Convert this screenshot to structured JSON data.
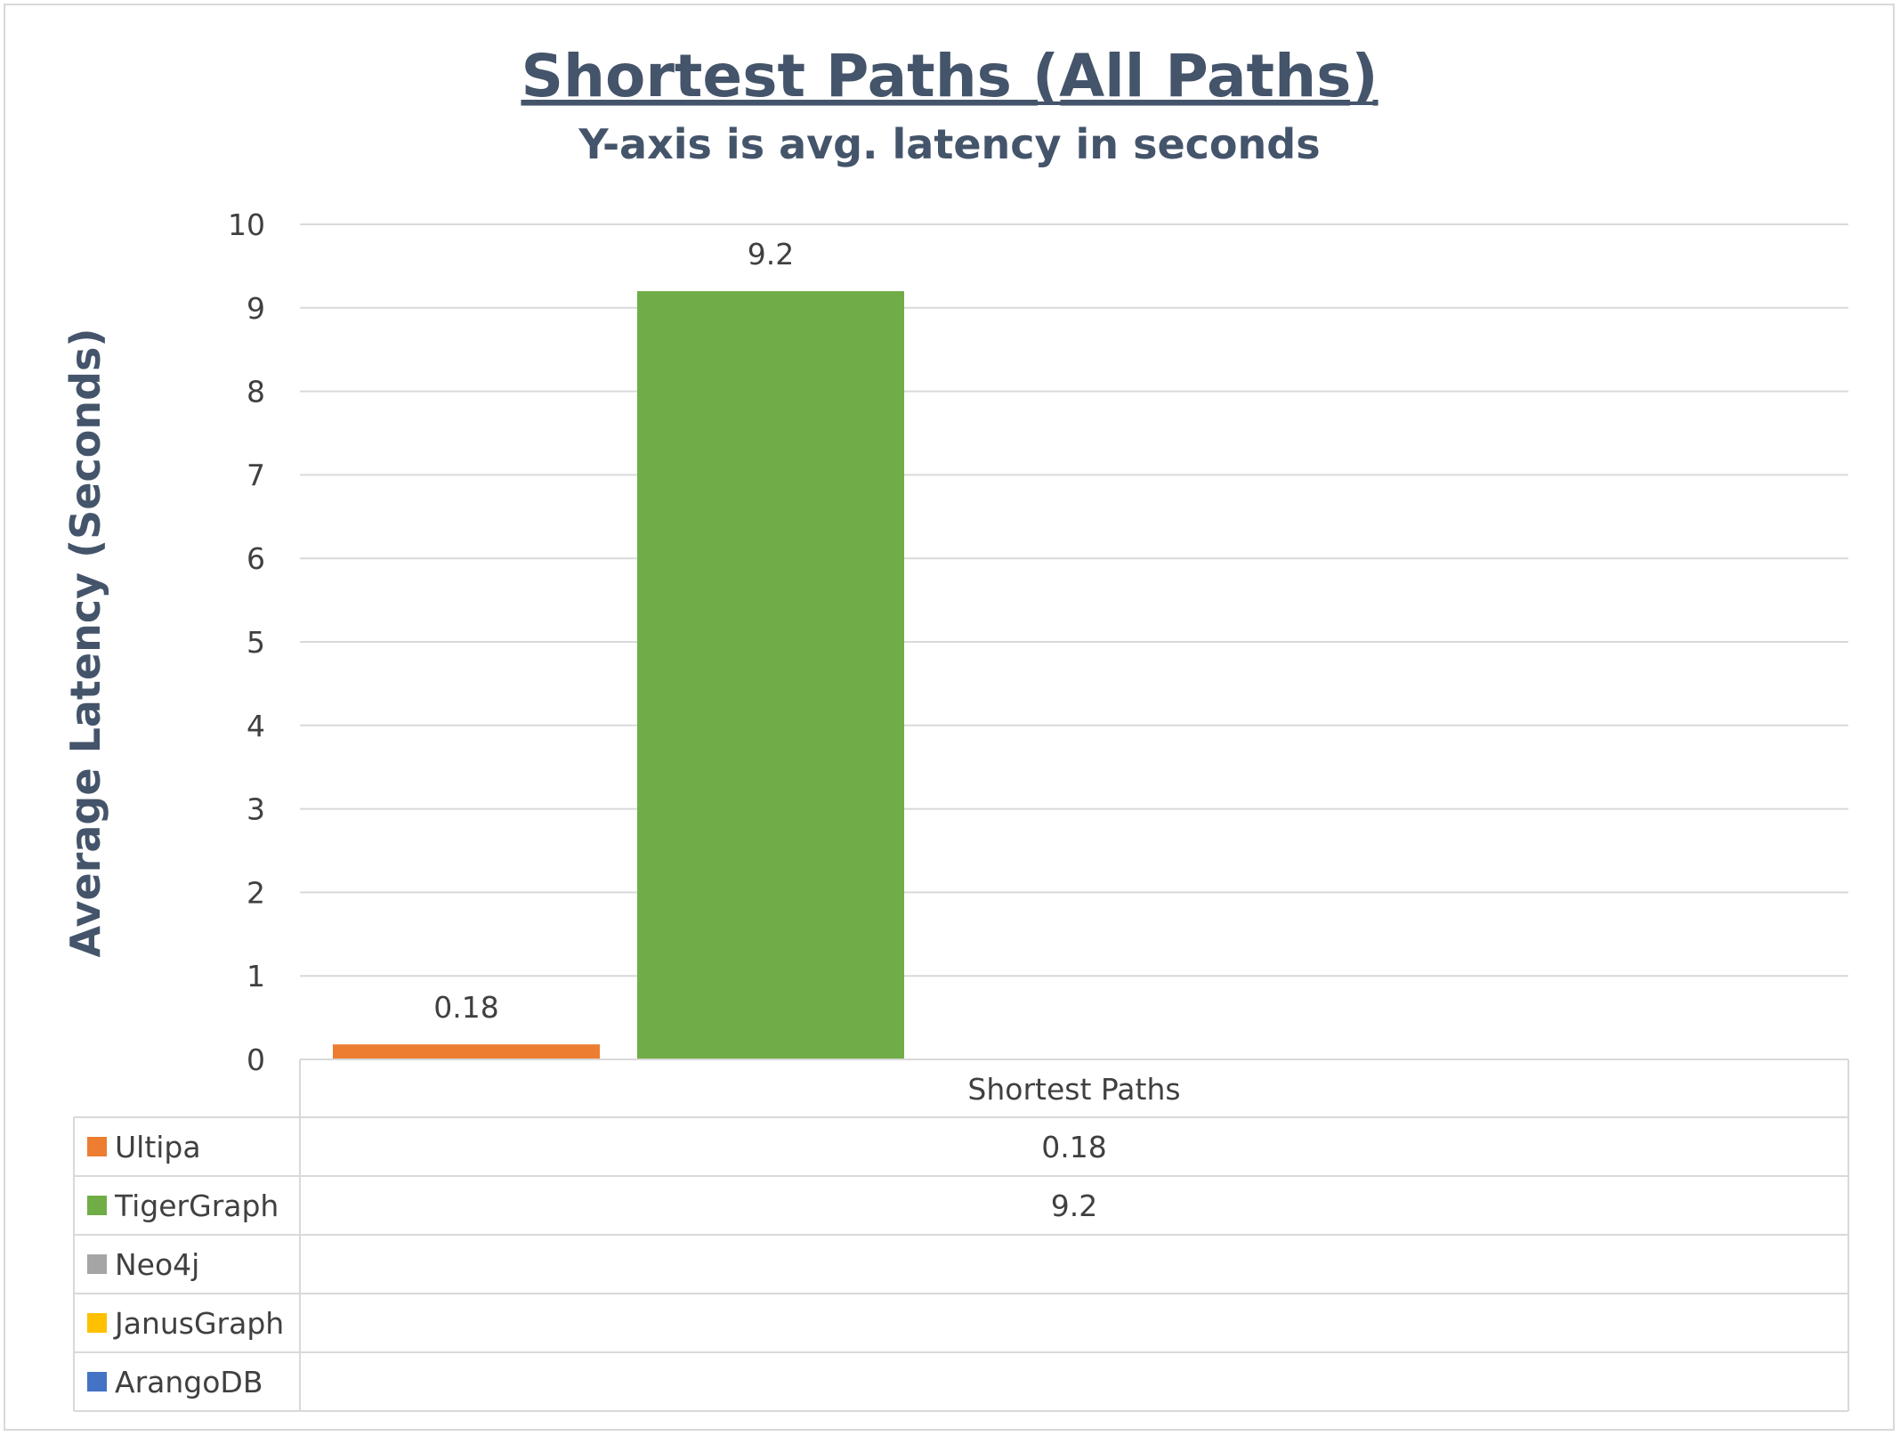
{
  "chart_data": {
    "type": "bar",
    "title": "Shortest Paths (All Paths)",
    "subtitle": "Y-axis is avg. latency in seconds",
    "ylabel": "Average  Latency (Seconds)",
    "xlabel": "",
    "categories": [
      "Shortest Paths"
    ],
    "ylim": [
      0,
      10
    ],
    "yticks": [
      0,
      1,
      2,
      3,
      4,
      5,
      6,
      7,
      8,
      9,
      10
    ],
    "grid": true,
    "legend": "data-table-below",
    "series": [
      {
        "name": "Ultipa",
        "color": "#ed7d31",
        "values": [
          0.18
        ],
        "label": "0.18"
      },
      {
        "name": "TigerGraph",
        "color": "#70ad47",
        "values": [
          9.2
        ],
        "label": "9.2"
      },
      {
        "name": "Neo4j",
        "color": "#a5a5a5",
        "values": [
          null
        ],
        "label": ""
      },
      {
        "name": "JanusGraph",
        "color": "#ffc000",
        "values": [
          null
        ],
        "label": ""
      },
      {
        "name": "ArangoDB",
        "color": "#4472c4",
        "values": [
          null
        ],
        "label": ""
      }
    ]
  }
}
